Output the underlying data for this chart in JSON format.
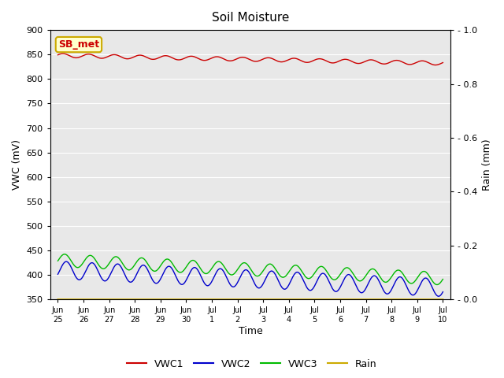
{
  "title": "Soil Moisture",
  "xlabel": "Time",
  "ylabel_left": "VWC (mV)",
  "ylabel_right": "Rain (mm)",
  "annotation_text": "SB_met",
  "ylim_left": [
    350,
    900
  ],
  "ylim_right": [
    0.0,
    1.0
  ],
  "yticks_left": [
    350,
    400,
    450,
    500,
    550,
    600,
    650,
    700,
    750,
    800,
    850,
    900
  ],
  "yticks_right": [
    0.0,
    0.2,
    0.4,
    0.6,
    0.8,
    1.0
  ],
  "xtick_labels": [
    "Jun\n25",
    "Jun\n26",
    "Jun\n27",
    "Jun\n28",
    "Jun\n29",
    "Jun\n30",
    "Jul\n1",
    "Jul\n2",
    "Jul\n3",
    "Jul\n4",
    "Jul\n5",
    "Jul\n6",
    "Jul\n7",
    "Jul\n8",
    "Jul\n9",
    "Jul\n10"
  ],
  "colors": {
    "VWC1": "#cc0000",
    "VWC2": "#0000cc",
    "VWC3": "#00bb00",
    "Rain": "#ccaa00",
    "background": "#e8e8e8",
    "annotation_bg": "#ffffcc",
    "annotation_border": "#ccaa00",
    "annotation_text": "#cc0000",
    "grid": "#ffffff",
    "fig_bg": "#ffffff"
  },
  "n_points": 1500
}
